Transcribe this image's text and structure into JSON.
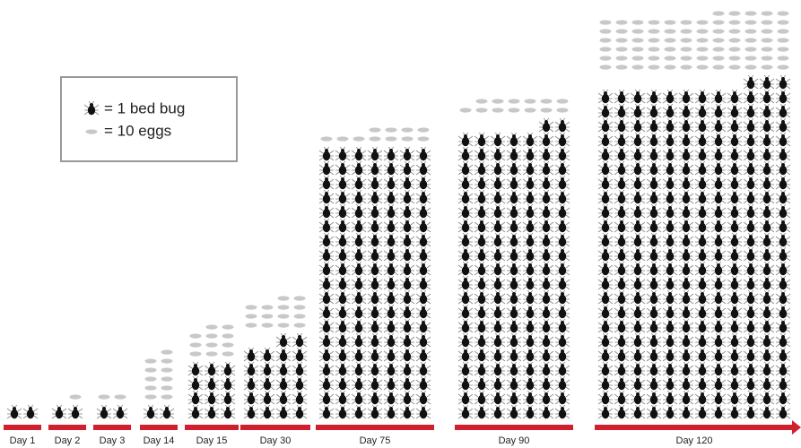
{
  "chart_data": {
    "type": "pictogram",
    "categories": [
      "Day 1",
      "Day 2",
      "Day 3",
      "Day 14",
      "Day 15",
      "Day 30",
      "Day 75",
      "Day 90",
      "Day 120"
    ],
    "series": [
      {
        "name": "= 1 bed bug",
        "color": "#111111",
        "values": [
          2,
          2,
          2,
          2,
          12,
          22,
          133,
          142,
          279
        ]
      },
      {
        "name": "= 10 eggs",
        "color": "#c8c8c8",
        "values": [
          0,
          1,
          2,
          11,
          11,
          14,
          11,
          13,
          77
        ]
      }
    ],
    "bar_color": "#d0202e"
  }
}
